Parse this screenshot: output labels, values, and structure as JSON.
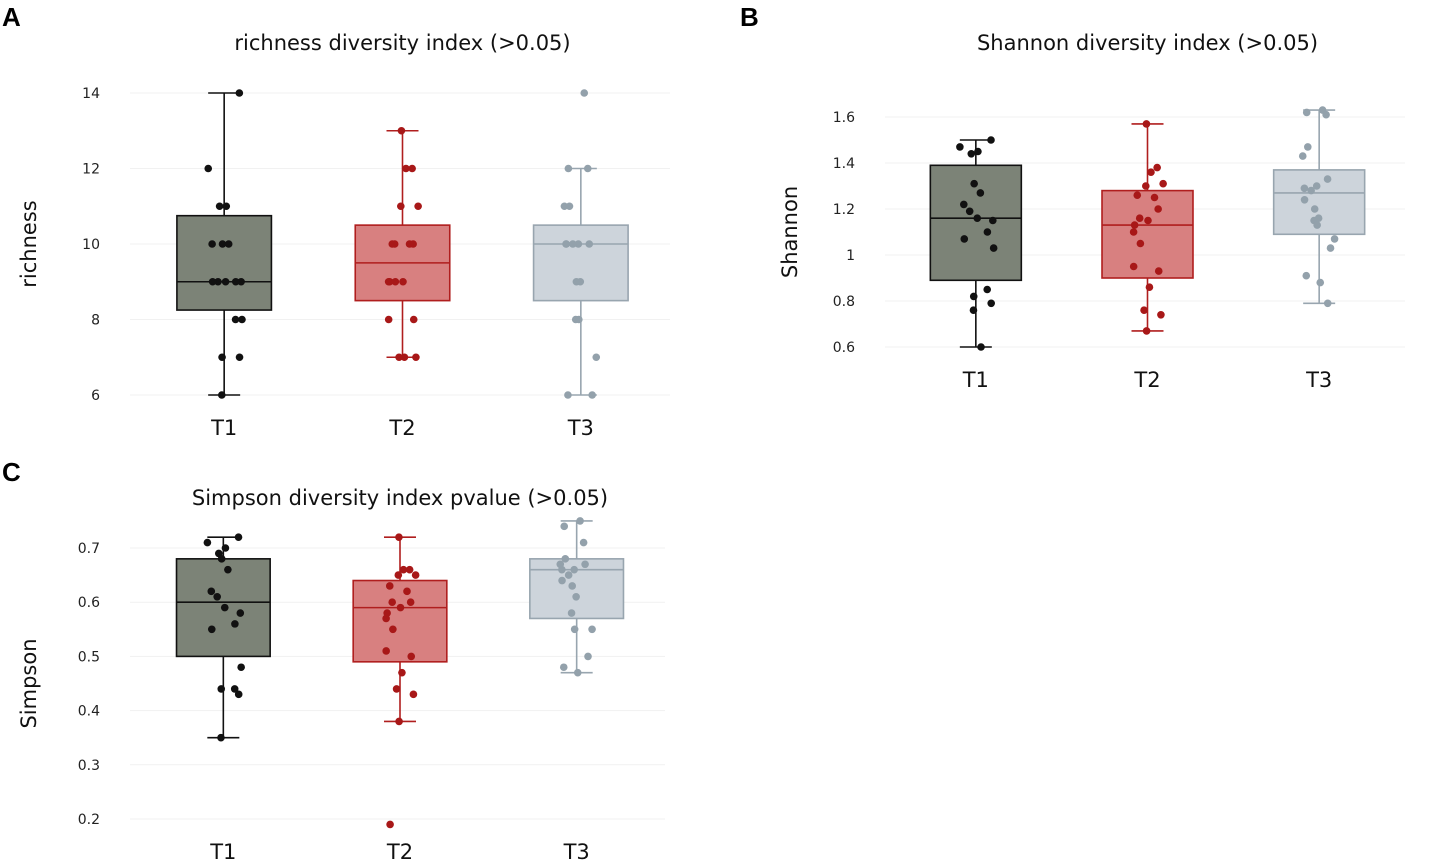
{
  "panels": [
    {
      "letter": "A",
      "chart_data": {
        "type": "box",
        "title": "richness diversity index (>0.05)",
        "ylabel": "richness",
        "xlabel": "",
        "categories": [
          "T1",
          "T2",
          "T3"
        ],
        "ylim": [
          6,
          14
        ],
        "yticks": [
          6,
          8,
          10,
          12,
          14
        ],
        "ytick_labels": [
          "6",
          "8",
          "10",
          "12",
          "14"
        ],
        "series": [
          {
            "name": "T1",
            "min": 6,
            "q1": 8.25,
            "median": 9,
            "q3": 10.75,
            "max": 14,
            "points": [
              14,
              12,
              11,
              11,
              10,
              10,
              10,
              9,
              9,
              9,
              9,
              9,
              8,
              8,
              7,
              7,
              6
            ]
          },
          {
            "name": "T2",
            "min": 7,
            "q1": 8.5,
            "median": 9.5,
            "q3": 10.5,
            "max": 13,
            "points": [
              13,
              12,
              12,
              11,
              11,
              10,
              10,
              10,
              10,
              9,
              9,
              9,
              9,
              8,
              8,
              7,
              7,
              7
            ]
          },
          {
            "name": "T3",
            "min": 6,
            "q1": 8.5,
            "median": 10,
            "q3": 10.5,
            "max": 12,
            "points": [
              14,
              12,
              12,
              11,
              11,
              10,
              10,
              10,
              10,
              10,
              9,
              9,
              8,
              8,
              7,
              6,
              6
            ]
          }
        ]
      }
    },
    {
      "letter": "B",
      "chart_data": {
        "type": "box",
        "title": "Shannon diversity index (>0.05)",
        "ylabel": "Shannon",
        "xlabel": "",
        "categories": [
          "T1",
          "T2",
          "T3"
        ],
        "ylim": [
          0.6,
          1.6
        ],
        "yticks": [
          0.6,
          0.8,
          1.0,
          1.2,
          1.4,
          1.6
        ],
        "ytick_labels": [
          "0.6",
          "0.8",
          "1",
          "1.2",
          "1.4",
          "1.6"
        ],
        "series": [
          {
            "name": "T1",
            "min": 0.6,
            "q1": 0.89,
            "median": 1.16,
            "q3": 1.39,
            "max": 1.5,
            "points": [
              1.5,
              1.47,
              1.45,
              1.44,
              1.31,
              1.27,
              1.22,
              1.19,
              1.16,
              1.15,
              1.1,
              1.07,
              1.03,
              0.85,
              0.82,
              0.79,
              0.76,
              0.6
            ]
          },
          {
            "name": "T2",
            "min": 0.67,
            "q1": 0.9,
            "median": 1.13,
            "q3": 1.28,
            "max": 1.57,
            "points": [
              1.57,
              1.38,
              1.36,
              1.31,
              1.3,
              1.26,
              1.25,
              1.2,
              1.16,
              1.15,
              1.13,
              1.1,
              1.05,
              0.95,
              0.93,
              0.86,
              0.76,
              0.74,
              0.67
            ]
          },
          {
            "name": "T3",
            "min": 0.79,
            "q1": 1.09,
            "median": 1.27,
            "q3": 1.37,
            "max": 1.63,
            "points": [
              1.63,
              1.62,
              1.61,
              1.47,
              1.43,
              1.33,
              1.3,
              1.29,
              1.28,
              1.24,
              1.2,
              1.16,
              1.15,
              1.13,
              1.07,
              1.03,
              0.91,
              0.88,
              0.79
            ]
          }
        ]
      }
    },
    {
      "letter": "C",
      "chart_data": {
        "type": "box",
        "title": "Simpson diversity index pvalue (>0.05)",
        "ylabel": "Simpson",
        "xlabel": "",
        "categories": [
          "T1",
          "T2",
          "T3"
        ],
        "ylim": [
          0.2,
          0.7
        ],
        "yticks": [
          0.2,
          0.3,
          0.4,
          0.5,
          0.6,
          0.7
        ],
        "ytick_labels": [
          "0.2",
          "0.3",
          "0.4",
          "0.5",
          "0.6",
          "0.7"
        ],
        "series": [
          {
            "name": "T1",
            "min": 0.35,
            "q1": 0.5,
            "median": 0.6,
            "q3": 0.68,
            "max": 0.72,
            "points": [
              0.72,
              0.71,
              0.7,
              0.69,
              0.68,
              0.66,
              0.62,
              0.61,
              0.59,
              0.58,
              0.56,
              0.55,
              0.48,
              0.44,
              0.44,
              0.43,
              0.35
            ]
          },
          {
            "name": "T2",
            "min": 0.38,
            "q1": 0.49,
            "median": 0.59,
            "q3": 0.64,
            "max": 0.72,
            "points": [
              0.72,
              0.66,
              0.66,
              0.65,
              0.65,
              0.63,
              0.62,
              0.6,
              0.6,
              0.59,
              0.58,
              0.57,
              0.55,
              0.51,
              0.5,
              0.47,
              0.44,
              0.43,
              0.38,
              0.19
            ]
          },
          {
            "name": "T3",
            "min": 0.47,
            "q1": 0.57,
            "median": 0.66,
            "q3": 0.68,
            "max": 0.75,
            "points": [
              0.75,
              0.74,
              0.71,
              0.68,
              0.67,
              0.67,
              0.66,
              0.66,
              0.65,
              0.64,
              0.63,
              0.61,
              0.58,
              0.55,
              0.55,
              0.5,
              0.48,
              0.47
            ]
          }
        ]
      }
    }
  ],
  "colors": {
    "T1": {
      "fill": "#7c8377",
      "stroke": "#111111",
      "dot": "#111111"
    },
    "T2": {
      "fill": "#d88080",
      "stroke": "#b01e1e",
      "dot": "#a81818"
    },
    "T3": {
      "fill": "#cdd4db",
      "stroke": "#98a5af",
      "dot": "#93a1ab"
    }
  }
}
